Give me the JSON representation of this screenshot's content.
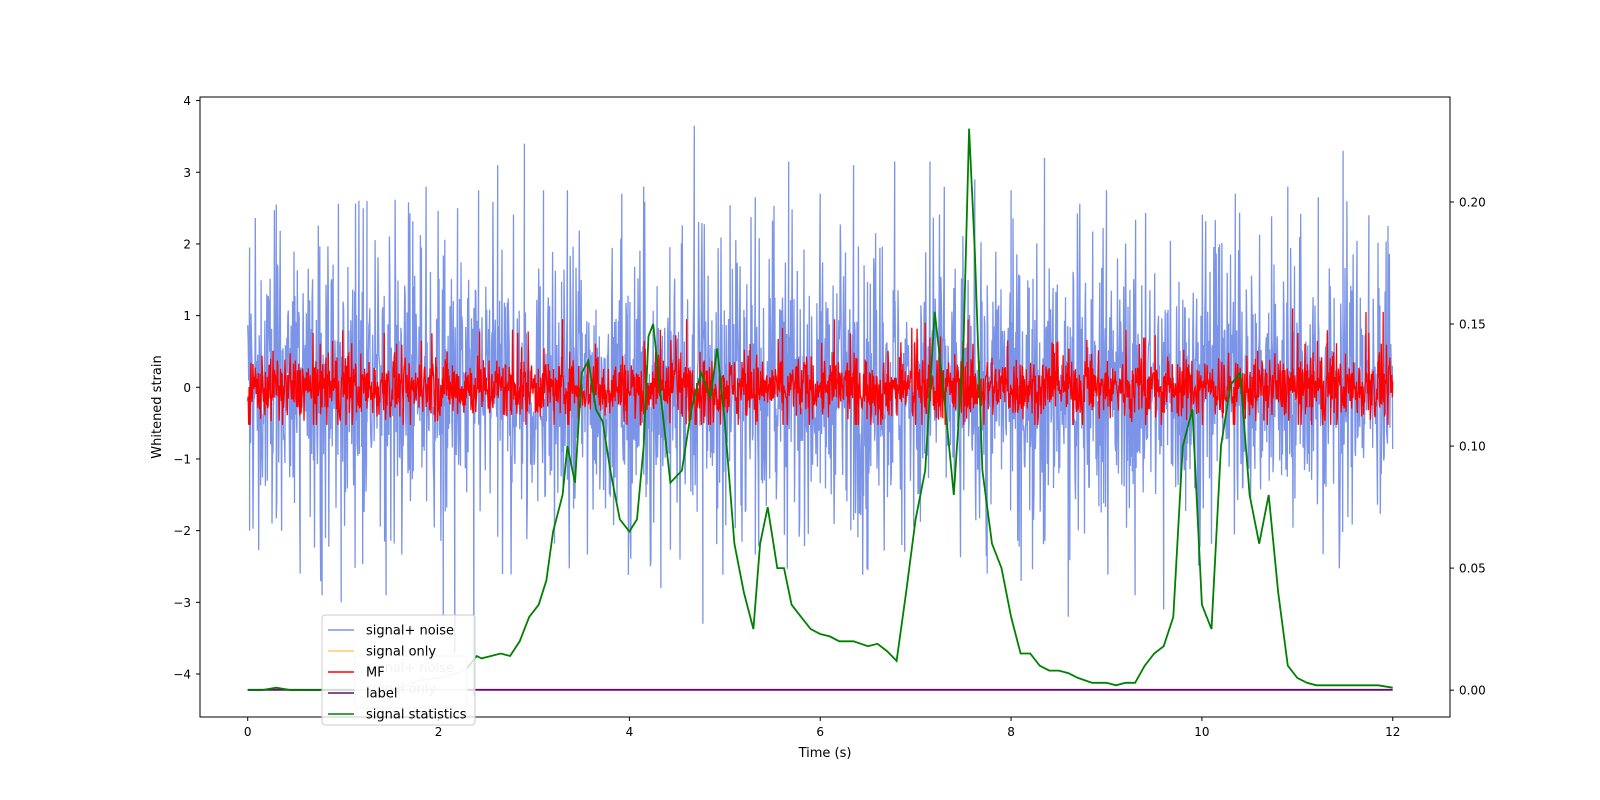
{
  "chart_data": {
    "type": "line",
    "title": "",
    "xlabel": "Time (s)",
    "ylabel": "Whitened strain",
    "xlim": [
      -0.5,
      12.6
    ],
    "ylim": [
      -4.6,
      4.05
    ],
    "y2lim": [
      -0.011,
      0.243
    ],
    "x_ticks": [
      0,
      2,
      4,
      6,
      8,
      10,
      12
    ],
    "y_ticks": [
      4,
      3,
      2,
      1,
      0,
      -1,
      -2,
      -3,
      -4
    ],
    "y2_ticks": [
      0.0,
      0.05,
      0.1,
      0.15,
      0.2
    ],
    "x_tick_labels": [
      "0",
      "2",
      "4",
      "6",
      "8",
      "10",
      "12"
    ],
    "y_tick_labels": [
      "4",
      "3",
      "2",
      "1",
      "0",
      "−1",
      "−2",
      "−3",
      "−4"
    ],
    "y2_tick_labels": [
      "0.00",
      "0.05",
      "0.10",
      "0.15",
      "0.20"
    ],
    "legend_position": "lower-left",
    "legend_entries": [
      {
        "label": "signal+ noise",
        "color": "#7b94e8"
      },
      {
        "label": "signal only",
        "color": "#ffc870"
      },
      {
        "label": "MF",
        "color": "#ff0000"
      },
      {
        "label": "label",
        "color": "#6a0a6a"
      },
      {
        "label": "signal statistics",
        "color": "#008000"
      }
    ],
    "ghost_legend_entries": [
      {
        "label": "signal+ noise"
      },
      {
        "label": "signal only"
      }
    ],
    "series": [
      {
        "name": "signal+ noise",
        "axis": "left",
        "color": "#7b94e8",
        "x_range": [
          0,
          12
        ],
        "amplitude_envelope": [
          -2.6,
          2.5
        ],
        "peak_values": [
          {
            "x": 0.02,
            "y": 1.95
          },
          {
            "x": 0.02,
            "y": -2.0
          },
          {
            "x": 0.3,
            "y": 2.55
          },
          {
            "x": 0.55,
            "y": -2.6
          },
          {
            "x": 0.78,
            "y": -2.9
          },
          {
            "x": 0.98,
            "y": -3.0
          },
          {
            "x": 1.25,
            "y": 2.6
          },
          {
            "x": 1.45,
            "y": -2.9
          },
          {
            "x": 1.87,
            "y": 2.8
          },
          {
            "x": 2.05,
            "y": -3.2
          },
          {
            "x": 2.17,
            "y": -3.7
          },
          {
            "x": 2.2,
            "y": 2.5
          },
          {
            "x": 2.37,
            "y": -4.3
          },
          {
            "x": 2.42,
            "y": 2.75
          },
          {
            "x": 2.62,
            "y": 3.1
          },
          {
            "x": 2.9,
            "y": 3.4
          },
          {
            "x": 3.1,
            "y": 2.75
          },
          {
            "x": 3.35,
            "y": 2.75
          },
          {
            "x": 3.92,
            "y": 2.7
          },
          {
            "x": 4.15,
            "y": 2.8
          },
          {
            "x": 4.33,
            "y": -2.8
          },
          {
            "x": 4.68,
            "y": 3.65
          },
          {
            "x": 4.77,
            "y": -3.3
          },
          {
            "x": 5.32,
            "y": 2.65
          },
          {
            "x": 5.67,
            "y": 3.15
          },
          {
            "x": 6.0,
            "y": 2.7
          },
          {
            "x": 6.35,
            "y": 3.1
          },
          {
            "x": 6.78,
            "y": 3.15
          },
          {
            "x": 7.15,
            "y": 3.15
          },
          {
            "x": 7.3,
            "y": 2.8
          },
          {
            "x": 7.62,
            "y": 2.9
          },
          {
            "x": 7.75,
            "y": -2.6
          },
          {
            "x": 8.0,
            "y": 2.75
          },
          {
            "x": 8.35,
            "y": 3.2
          },
          {
            "x": 8.6,
            "y": -3.2
          },
          {
            "x": 9.0,
            "y": 2.75
          },
          {
            "x": 9.3,
            "y": -2.9
          },
          {
            "x": 9.6,
            "y": -3.1
          },
          {
            "x": 10.35,
            "y": 2.7
          },
          {
            "x": 10.9,
            "y": 2.8
          },
          {
            "x": 11.22,
            "y": 2.65
          },
          {
            "x": 11.48,
            "y": 3.3
          },
          {
            "x": 11.75,
            "y": 2.4
          },
          {
            "x": 11.95,
            "y": 2.25
          }
        ]
      },
      {
        "name": "signal only",
        "axis": "left",
        "color": "#ffc870",
        "x": [],
        "y": []
      },
      {
        "name": "MF",
        "axis": "left",
        "color": "#ff0000",
        "x_range": [
          0,
          12
        ],
        "amplitude_envelope": [
          -0.5,
          0.8
        ],
        "peak_values": [
          {
            "x": 3.3,
            "y": 0.95
          },
          {
            "x": 4.6,
            "y": 0.95
          },
          {
            "x": 6.15,
            "y": 0.95
          },
          {
            "x": 7.1,
            "y": 0.9
          },
          {
            "x": 7.55,
            "y": 0.95
          },
          {
            "x": 10.95,
            "y": 1.1
          },
          {
            "x": 11.72,
            "y": 1.05
          },
          {
            "x": 11.9,
            "y": 1.05
          }
        ]
      },
      {
        "name": "label",
        "axis": "left",
        "color": "#6a0a6a",
        "x": [
          0,
          12
        ],
        "y": [
          -4.22,
          -4.22
        ]
      },
      {
        "name": "signal statistics",
        "axis": "right",
        "color": "#008000",
        "x": [
          0,
          0.15,
          0.3,
          0.45,
          0.6,
          0.8,
          1.0,
          1.2,
          1.4,
          1.6,
          1.8,
          2.0,
          2.2,
          2.3,
          2.4,
          2.45,
          2.55,
          2.65,
          2.75,
          2.85,
          2.95,
          3.05,
          3.13,
          3.2,
          3.3,
          3.35,
          3.43,
          3.5,
          3.57,
          3.65,
          3.72,
          3.8,
          3.9,
          4.0,
          4.08,
          4.15,
          4.2,
          4.25,
          4.33,
          4.43,
          4.55,
          4.65,
          4.75,
          4.85,
          4.92,
          5.0,
          5.1,
          5.2,
          5.3,
          5.37,
          5.45,
          5.55,
          5.62,
          5.7,
          5.8,
          5.9,
          6.0,
          6.1,
          6.2,
          6.35,
          6.5,
          6.6,
          6.7,
          6.8,
          6.9,
          7.0,
          7.1,
          7.2,
          7.3,
          7.4,
          7.5,
          7.56,
          7.62,
          7.7,
          7.8,
          7.9,
          8.0,
          8.1,
          8.2,
          8.3,
          8.4,
          8.5,
          8.6,
          8.7,
          8.85,
          9.0,
          9.1,
          9.2,
          9.3,
          9.4,
          9.5,
          9.6,
          9.7,
          9.8,
          9.9,
          10.0,
          10.1,
          10.2,
          10.3,
          10.4,
          10.5,
          10.6,
          10.7,
          10.8,
          10.9,
          11.0,
          11.1,
          11.2,
          11.35,
          11.5,
          11.7,
          11.85,
          12.0
        ],
        "y": [
          0.0,
          0.0,
          0.001,
          0.0,
          0.0,
          0.0,
          0.0,
          0.0,
          0.0,
          0.001,
          0.004,
          0.005,
          0.007,
          0.009,
          0.014,
          0.013,
          0.014,
          0.015,
          0.014,
          0.02,
          0.03,
          0.035,
          0.045,
          0.065,
          0.08,
          0.1,
          0.085,
          0.13,
          0.135,
          0.115,
          0.11,
          0.09,
          0.07,
          0.065,
          0.07,
          0.1,
          0.145,
          0.15,
          0.12,
          0.085,
          0.09,
          0.115,
          0.13,
          0.12,
          0.14,
          0.11,
          0.06,
          0.04,
          0.025,
          0.06,
          0.075,
          0.05,
          0.05,
          0.035,
          0.03,
          0.025,
          0.023,
          0.022,
          0.02,
          0.02,
          0.018,
          0.019,
          0.016,
          0.012,
          0.04,
          0.07,
          0.09,
          0.155,
          0.12,
          0.08,
          0.14,
          0.23,
          0.18,
          0.09,
          0.06,
          0.05,
          0.03,
          0.015,
          0.015,
          0.01,
          0.008,
          0.008,
          0.007,
          0.005,
          0.003,
          0.003,
          0.002,
          0.003,
          0.003,
          0.01,
          0.015,
          0.018,
          0.03,
          0.1,
          0.115,
          0.035,
          0.025,
          0.1,
          0.125,
          0.13,
          0.08,
          0.06,
          0.08,
          0.04,
          0.01,
          0.005,
          0.003,
          0.002,
          0.002,
          0.002,
          0.002,
          0.002,
          0.001
        ]
      }
    ]
  }
}
